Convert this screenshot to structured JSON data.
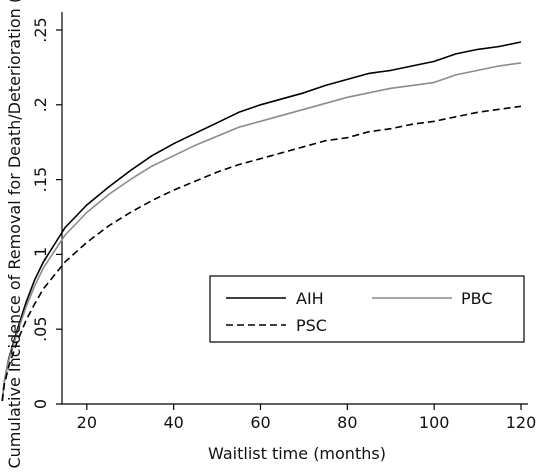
{
  "chart_data": {
    "type": "line",
    "title": "",
    "xlabel": "Waitlist time (months)",
    "ylabel": "Cumulative Incidence of Removal for Death/Deterioration (%)",
    "xlim": [
      0,
      120
    ],
    "ylim": [
      0,
      0.25
    ],
    "xticks": [
      20,
      40,
      60,
      80,
      100,
      120
    ],
    "yticks": [
      0,
      0.05,
      0.1,
      0.15,
      0.2,
      0.25
    ],
    "ytick_labels": [
      "0",
      ".05",
      ".1",
      ".15",
      ".2",
      ".25"
    ],
    "grid": false,
    "legend_position": "bottom-right",
    "series": [
      {
        "name": "AIH",
        "color": "#000000",
        "style": "solid",
        "points": [
          [
            0.5,
            0.002
          ],
          [
            1,
            0.015
          ],
          [
            2,
            0.03
          ],
          [
            4,
            0.05
          ],
          [
            6,
            0.068
          ],
          [
            8,
            0.083
          ],
          [
            10,
            0.095
          ],
          [
            15,
            0.118
          ],
          [
            20,
            0.133
          ],
          [
            25,
            0.145
          ],
          [
            30,
            0.156
          ],
          [
            35,
            0.166
          ],
          [
            40,
            0.174
          ],
          [
            45,
            0.181
          ],
          [
            50,
            0.188
          ],
          [
            55,
            0.195
          ],
          [
            60,
            0.2
          ],
          [
            65,
            0.204
          ],
          [
            70,
            0.208
          ],
          [
            75,
            0.213
          ],
          [
            80,
            0.217
          ],
          [
            85,
            0.221
          ],
          [
            90,
            0.223
          ],
          [
            95,
            0.226
          ],
          [
            100,
            0.229
          ],
          [
            105,
            0.234
          ],
          [
            110,
            0.237
          ],
          [
            115,
            0.239
          ],
          [
            120,
            0.242
          ]
        ]
      },
      {
        "name": "PBC",
        "color": "#8c8c8c",
        "style": "solid",
        "points": [
          [
            0.5,
            0.002
          ],
          [
            1,
            0.015
          ],
          [
            2,
            0.029
          ],
          [
            4,
            0.048
          ],
          [
            6,
            0.065
          ],
          [
            8,
            0.079
          ],
          [
            10,
            0.091
          ],
          [
            15,
            0.113
          ],
          [
            20,
            0.128
          ],
          [
            25,
            0.14
          ],
          [
            30,
            0.15
          ],
          [
            35,
            0.159
          ],
          [
            40,
            0.166
          ],
          [
            45,
            0.173
          ],
          [
            50,
            0.179
          ],
          [
            55,
            0.185
          ],
          [
            60,
            0.189
          ],
          [
            65,
            0.193
          ],
          [
            70,
            0.197
          ],
          [
            75,
            0.201
          ],
          [
            80,
            0.205
          ],
          [
            85,
            0.208
          ],
          [
            90,
            0.211
          ],
          [
            95,
            0.213
          ],
          [
            100,
            0.215
          ],
          [
            105,
            0.22
          ],
          [
            110,
            0.223
          ],
          [
            115,
            0.226
          ],
          [
            120,
            0.228
          ]
        ]
      },
      {
        "name": "PSC",
        "color": "#000000",
        "style": "dashed",
        "points": [
          [
            0.5,
            0.002
          ],
          [
            1,
            0.013
          ],
          [
            2,
            0.025
          ],
          [
            4,
            0.042
          ],
          [
            6,
            0.056
          ],
          [
            8,
            0.067
          ],
          [
            10,
            0.077
          ],
          [
            15,
            0.095
          ],
          [
            20,
            0.108
          ],
          [
            25,
            0.119
          ],
          [
            30,
            0.128
          ],
          [
            35,
            0.136
          ],
          [
            40,
            0.143
          ],
          [
            45,
            0.149
          ],
          [
            50,
            0.155
          ],
          [
            55,
            0.16
          ],
          [
            60,
            0.164
          ],
          [
            65,
            0.168
          ],
          [
            70,
            0.172
          ],
          [
            75,
            0.176
          ],
          [
            80,
            0.178
          ],
          [
            85,
            0.182
          ],
          [
            90,
            0.184
          ],
          [
            95,
            0.187
          ],
          [
            100,
            0.189
          ],
          [
            105,
            0.192
          ],
          [
            110,
            0.195
          ],
          [
            115,
            0.197
          ],
          [
            120,
            0.199
          ]
        ]
      }
    ]
  }
}
